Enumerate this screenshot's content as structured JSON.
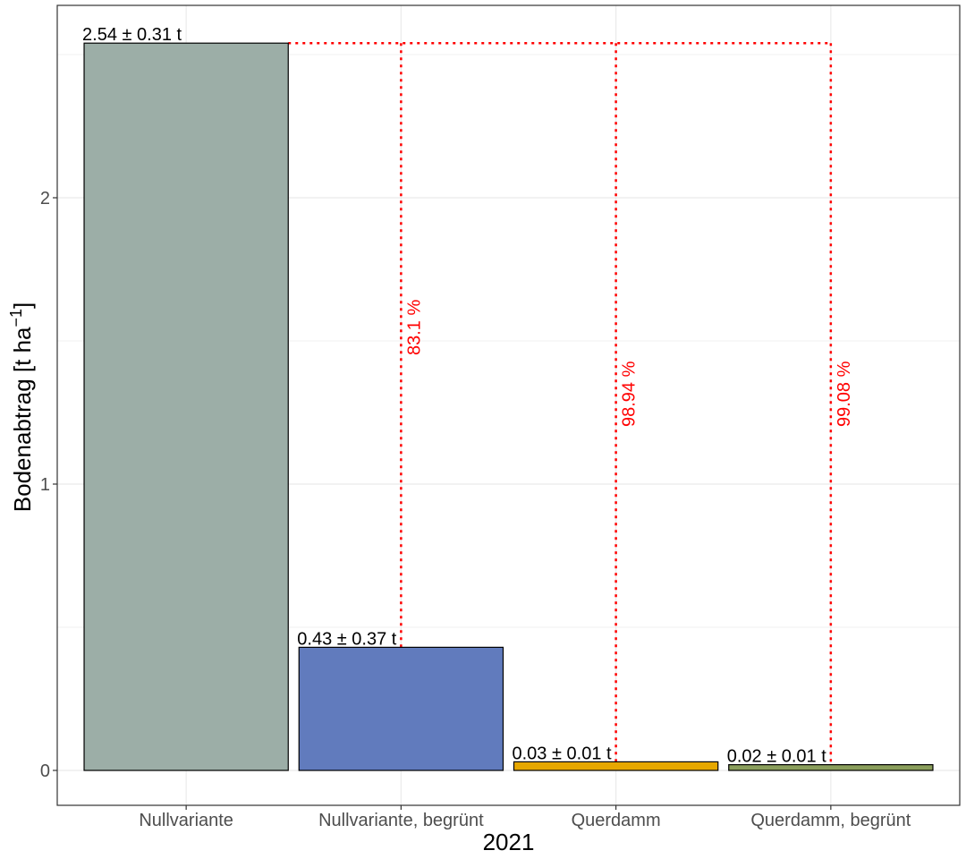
{
  "chart_data": {
    "type": "bar",
    "xlabel": "2021",
    "ylabel": "Bodenabtrag [t ha",
    "ylabel_superscript": "−1",
    "ylabel_suffix": "]",
    "ylim": [
      -0.12,
      2.67
    ],
    "yticks": [
      0,
      1,
      2
    ],
    "grid": true,
    "categories": [
      "Nullvariante",
      "Nullvariante, begrünt",
      "Querdamm",
      "Querdamm, begrünt"
    ],
    "values": [
      2.54,
      0.43,
      0.03,
      0.02
    ],
    "bar_labels": [
      "2.54 ± 0.31 t",
      "0.43 ± 0.37 t",
      "0.03 ± 0.01 t",
      "0.02 ± 0.01 t"
    ],
    "bar_colors": [
      "#9caea7",
      "#617bbd",
      "#e6a700",
      "#8a9e5c"
    ],
    "reduction_labels": [
      {
        "category_index": 1,
        "text": "83.1 %",
        "y": 1.45
      },
      {
        "category_index": 2,
        "text": "98.94 %",
        "y": 1.2
      },
      {
        "category_index": 3,
        "text": "99.08 %",
        "y": 1.2
      }
    ],
    "reduction_color": "#ff0000"
  }
}
